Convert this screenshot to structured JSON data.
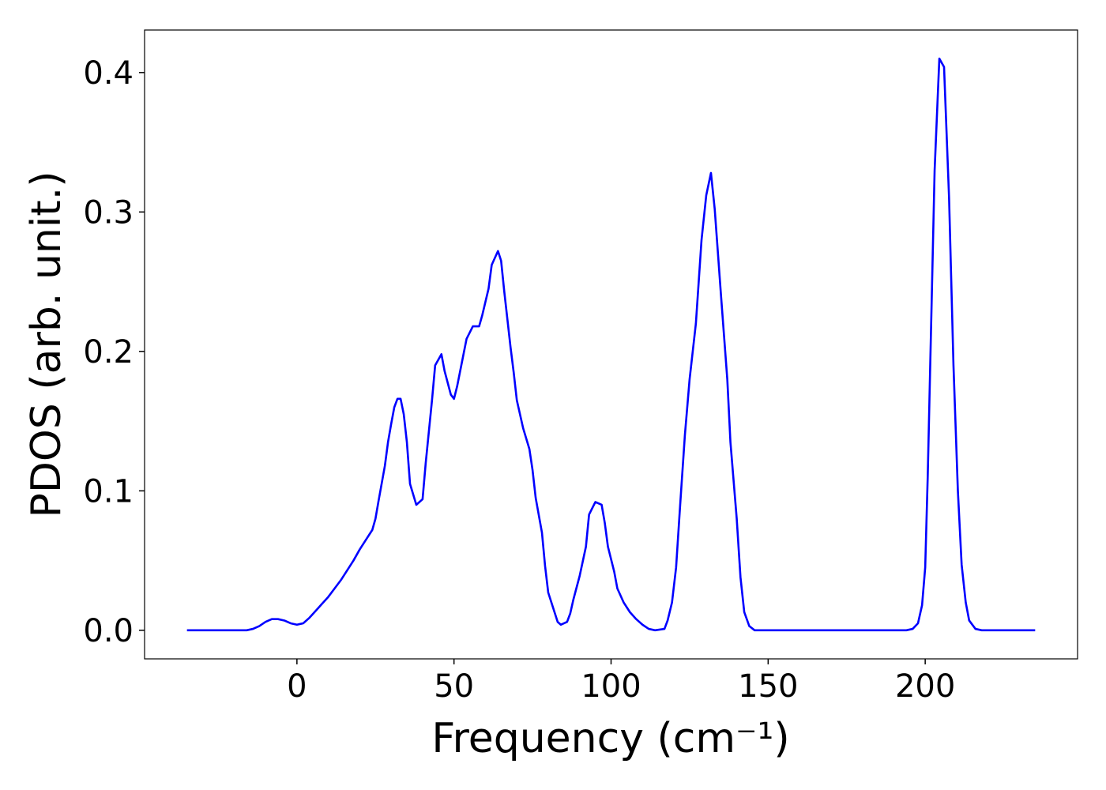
{
  "chart_data": {
    "type": "line",
    "xlabel": "Frequency (cm⁻¹)",
    "ylabel": "PDOS (arb. unit.)",
    "color": "#0000ff",
    "x": [
      -35,
      -16,
      -14,
      -12,
      -10,
      -8,
      -6,
      -4,
      -2,
      0,
      2,
      4,
      6,
      8,
      10,
      12,
      14,
      16,
      18,
      20,
      22,
      24,
      25,
      26,
      28,
      29,
      30,
      31,
      32,
      33,
      34,
      35,
      36,
      38,
      40,
      41,
      43,
      44,
      46,
      47,
      49,
      50,
      51,
      54,
      56,
      58,
      59,
      61,
      62,
      64,
      65,
      66,
      68,
      69,
      70,
      72,
      74,
      75,
      76,
      78,
      79,
      80,
      82,
      83,
      84,
      86,
      87,
      88,
      90,
      92,
      93,
      95,
      97,
      98,
      99,
      101,
      102,
      104,
      106,
      108,
      110,
      112,
      114,
      117,
      118,
      119.4,
      120.7,
      122,
      123.5,
      125,
      127,
      128.8,
      130.3,
      131.8,
      133,
      135,
      137,
      138,
      140,
      141.2,
      142.4,
      144,
      145.7,
      194,
      196,
      197.7,
      199,
      200,
      200.8,
      203,
      204.5,
      206,
      207.6,
      209,
      210.4,
      211.6,
      212.9,
      214,
      216,
      218,
      235
    ],
    "values": [
      0,
      0,
      0.001,
      0.003,
      0.006,
      0.008,
      0.008,
      0.007,
      0.005,
      0.004,
      0.005,
      0.009,
      0.014,
      0.019,
      0.024,
      0.03,
      0.036,
      0.043,
      0.05,
      0.058,
      0.065,
      0.072,
      0.08,
      0.093,
      0.118,
      0.135,
      0.148,
      0.16,
      0.166,
      0.166,
      0.155,
      0.135,
      0.105,
      0.09,
      0.094,
      0.12,
      0.165,
      0.19,
      0.198,
      0.186,
      0.169,
      0.166,
      0.175,
      0.209,
      0.218,
      0.218,
      0.226,
      0.245,
      0.262,
      0.272,
      0.265,
      0.243,
      0.203,
      0.185,
      0.165,
      0.145,
      0.13,
      0.115,
      0.095,
      0.07,
      0.046,
      0.027,
      0.013,
      0.006,
      0.004,
      0.006,
      0.012,
      0.022,
      0.039,
      0.06,
      0.083,
      0.092,
      0.09,
      0.077,
      0.06,
      0.042,
      0.03,
      0.02,
      0.013,
      0.008,
      0.004,
      0.001,
      0,
      0.001,
      0.007,
      0.02,
      0.045,
      0.09,
      0.14,
      0.18,
      0.22,
      0.28,
      0.312,
      0.328,
      0.302,
      0.24,
      0.18,
      0.135,
      0.08,
      0.038,
      0.013,
      0.003,
      0,
      0,
      0.001,
      0.005,
      0.018,
      0.045,
      0.11,
      0.33,
      0.41,
      0.404,
      0.31,
      0.19,
      0.1,
      0.047,
      0.02,
      0.007,
      0.001,
      0,
      0
    ],
    "xlim": [
      -48.5,
      248.5
    ],
    "ylim": [
      -0.0205,
      0.4305
    ],
    "xticks": [
      0,
      50,
      100,
      150,
      200
    ],
    "yticks": [
      {
        "value": 0,
        "label": "0.0"
      },
      0.1,
      0.2,
      0.3,
      0.4
    ]
  }
}
